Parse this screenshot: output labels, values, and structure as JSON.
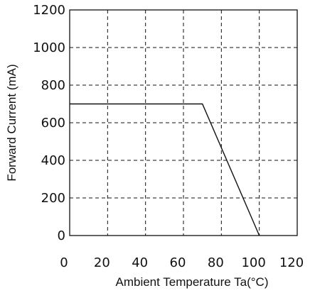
{
  "chart_data": {
    "type": "line",
    "title": "",
    "xlabel": "Ambient Temperature Ta(°C)",
    "ylabel": "Forward Current (mA)",
    "xlim": [
      0,
      120
    ],
    "ylim": [
      0,
      1200
    ],
    "x_ticks": [
      0,
      20,
      40,
      60,
      80,
      100,
      120
    ],
    "y_ticks": [
      0,
      200,
      400,
      600,
      800,
      1000,
      1200
    ],
    "grid": true,
    "grid_style": "dashed",
    "series": [
      {
        "x": [
          0,
          70,
          100
        ],
        "y": [
          700,
          700,
          0
        ],
        "color": "#111111"
      }
    ]
  }
}
